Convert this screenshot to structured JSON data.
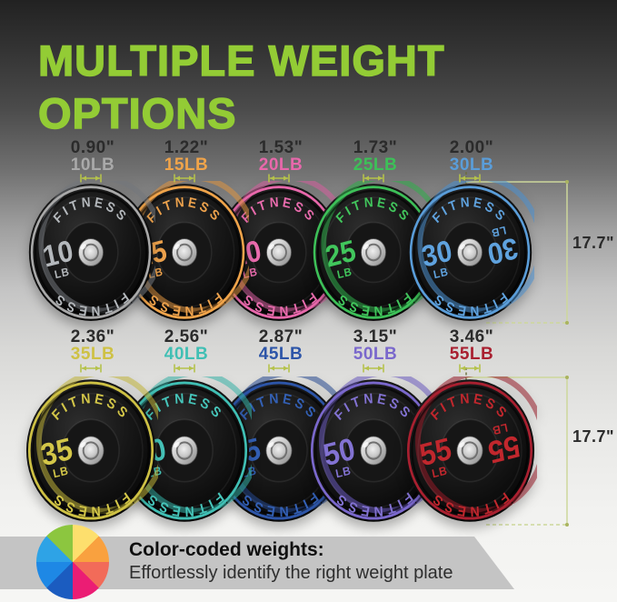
{
  "title": {
    "line1": "MULTIPLE WEIGHT",
    "line2": "OPTIONS"
  },
  "brand": "FITNESS",
  "rows": [
    {
      "height_label": "17.7\"",
      "plates": [
        {
          "thickness": "0.90\"",
          "weight_label": "10LB",
          "num": "10",
          "unit": "LB",
          "color": "#a9a9a9",
          "rim": "#73777b",
          "plate_text": "#b4b8bc",
          "double_label": false
        },
        {
          "thickness": "1.22\"",
          "weight_label": "15LB",
          "num": "15",
          "unit": "LB",
          "color": "#f0a44a",
          "rim": "#df9440",
          "plate_text": "#eda24c",
          "double_label": false
        },
        {
          "thickness": "1.53\"",
          "weight_label": "20LB",
          "num": "20",
          "unit": "LB",
          "color": "#e868ab",
          "rim": "#d55f9e",
          "plate_text": "#ea6cae",
          "double_label": false
        },
        {
          "thickness": "1.73\"",
          "weight_label": "25LB",
          "num": "25",
          "unit": "LB",
          "color": "#3dc058",
          "rim": "#2fae4a",
          "plate_text": "#41c65c",
          "double_label": false
        },
        {
          "thickness": "2.00\"",
          "weight_label": "30LB",
          "num": "30",
          "unit": "LB",
          "color": "#5a9dd9",
          "rim": "#4b90d0",
          "plate_text": "#5fa2de",
          "double_label": true
        }
      ]
    },
    {
      "height_label": "17.7\"",
      "plates": [
        {
          "thickness": "2.36\"",
          "weight_label": "35LB",
          "num": "35",
          "unit": "LB",
          "color": "#cec144",
          "rim": "#bfb238",
          "plate_text": "#d3c648",
          "double_label": false
        },
        {
          "thickness": "2.56\"",
          "weight_label": "40LB",
          "num": "40",
          "unit": "LB",
          "color": "#40bfb4",
          "rim": "#35b0a5",
          "plate_text": "#46c5ba",
          "double_label": false
        },
        {
          "thickness": "2.87\"",
          "weight_label": "45LB",
          "num": "45",
          "unit": "LB",
          "color": "#2d55a8",
          "rim": "#27498f",
          "plate_text": "#3360b5",
          "double_label": false
        },
        {
          "thickness": "3.15\"",
          "weight_label": "50LB",
          "num": "50",
          "unit": "LB",
          "color": "#7a68cc",
          "rim": "#6a59bd",
          "plate_text": "#8272d2",
          "double_label": false
        },
        {
          "thickness": "3.46\"",
          "weight_label": "55LB",
          "num": "55",
          "unit": "LB",
          "color": "#a92030",
          "rim": "#951b28",
          "plate_text": "#c1272d",
          "double_label": true
        }
      ]
    }
  ],
  "footer": {
    "heading": "Color-coded weights:",
    "subheading": "Effortlessly identify the right weight plate",
    "wheel_colors": [
      "#fddf6d",
      "#f9a13f",
      "#f26b59",
      "#eb1d74",
      "#1b5cc0",
      "#1e88e5",
      "#2ea3e6",
      "#8cc63f"
    ]
  },
  "style": {
    "accent_green": "#93cc35",
    "bracket_line": "#cdd79b",
    "bracket_dot": "#aab45f",
    "tick_color": "#6b6e3c",
    "arrow_green": "#b5c24b",
    "banner_bg": "#c4c4c4"
  }
}
